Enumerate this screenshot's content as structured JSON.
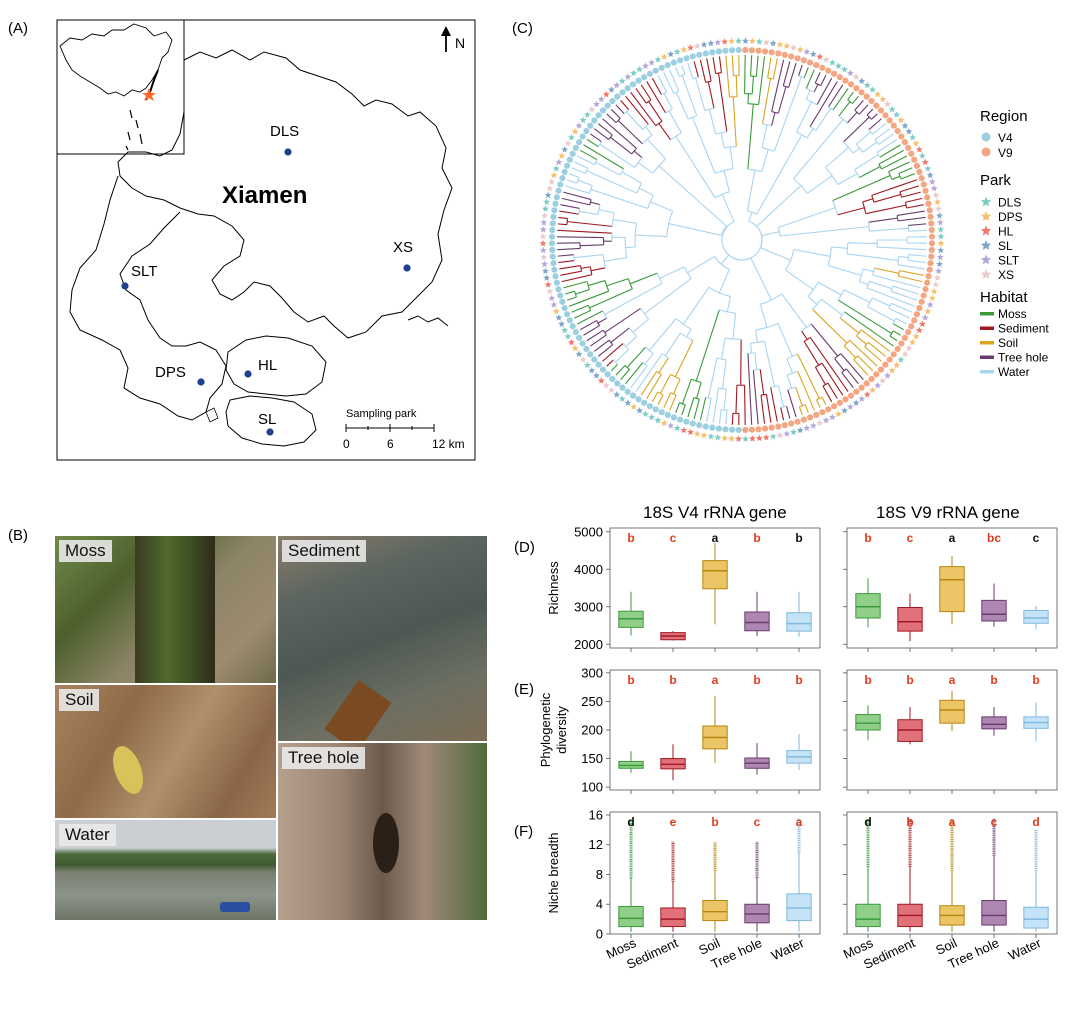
{
  "panels": {
    "a": "(A)",
    "b": "(B)",
    "c": "(C)",
    "d": "(D)",
    "e": "(E)",
    "f": "(F)"
  },
  "map": {
    "city": "Xiamen",
    "north": "N",
    "scalebar_title": "Sampling park",
    "scalebar_ticks": [
      "0",
      "6",
      "12 km"
    ],
    "sites": [
      {
        "name": "DLS"
      },
      {
        "name": "XS"
      },
      {
        "name": "SLT"
      },
      {
        "name": "DPS"
      },
      {
        "name": "HL"
      },
      {
        "name": "SL"
      }
    ],
    "site_color": "#1f3f8f",
    "star_color": "#ff6a2b"
  },
  "photos": {
    "moss": "Moss",
    "sediment": "Sediment",
    "soil": "Soil",
    "tree_hole": "Tree hole",
    "water": "Water"
  },
  "legend": {
    "region_title": "Region",
    "region": [
      {
        "label": "V4",
        "color": "#9ccfdf"
      },
      {
        "label": "V9",
        "color": "#f4a582"
      }
    ],
    "park_title": "Park",
    "park": [
      {
        "label": "DLS",
        "color": "#7ecdc6"
      },
      {
        "label": "DPS",
        "color": "#f7bf6e"
      },
      {
        "label": "HL",
        "color": "#ef7a6a"
      },
      {
        "label": "SL",
        "color": "#7fa5c8"
      },
      {
        "label": "SLT",
        "color": "#b6a8d9"
      },
      {
        "label": "XS",
        "color": "#eccaca"
      }
    ],
    "habitat_title": "Habitat",
    "habitat": [
      {
        "label": "Moss",
        "color": "#3a9a3a"
      },
      {
        "label": "Sediment",
        "color": "#a01820"
      },
      {
        "label": "Soil",
        "color": "#d9a520"
      },
      {
        "label": "Tree hole",
        "color": "#6a3a6e"
      },
      {
        "label": "Water",
        "color": "#a8d4f2"
      }
    ]
  },
  "chart_data": [
    {
      "type": "box",
      "panel": "D",
      "title": "18S V4 rRNA gene",
      "ylabel": "Richness",
      "ylim": [
        1900,
        5100
      ],
      "yticks": [
        2000,
        3000,
        4000,
        5000
      ],
      "categories": [
        "Moss",
        "Sediment",
        "Soil",
        "Tree hole",
        "Water"
      ],
      "letters": [
        "b",
        "c",
        "a",
        "b",
        "b"
      ],
      "letter_colors": [
        "#e03c1e",
        "#e03c1e",
        "#111111",
        "#e03c1e",
        "#111111"
      ],
      "boxes": [
        {
          "min": 2230,
          "q1": 2450,
          "median": 2680,
          "q3": 2880,
          "max": 3400
        },
        {
          "min": 2100,
          "q1": 2120,
          "median": 2220,
          "q3": 2310,
          "max": 2350
        },
        {
          "min": 2530,
          "q1": 3480,
          "median": 3960,
          "q3": 4230,
          "max": 4700
        },
        {
          "min": 2220,
          "q1": 2360,
          "median": 2580,
          "q3": 2860,
          "max": 3400
        },
        {
          "min": 2200,
          "q1": 2350,
          "median": 2550,
          "q3": 2840,
          "max": 3400
        }
      ]
    },
    {
      "type": "box",
      "panel": "D",
      "title": "18S V9 rRNA gene",
      "ylabel": "",
      "ylim": [
        1900,
        5100
      ],
      "yticks": [
        2000,
        3000,
        4000,
        5000
      ],
      "categories": [
        "Moss",
        "Sediment",
        "Soil",
        "Tree hole",
        "Water"
      ],
      "letters": [
        "b",
        "c",
        "a",
        "bc",
        "c"
      ],
      "letter_colors": [
        "#e03c1e",
        "#e03c1e",
        "#111111",
        "#e03c1e",
        "#111111"
      ],
      "boxes": [
        {
          "min": 2450,
          "q1": 2700,
          "median": 3000,
          "q3": 3350,
          "max": 3760
        },
        {
          "min": 2080,
          "q1": 2350,
          "median": 2600,
          "q3": 2980,
          "max": 3350
        },
        {
          "min": 2530,
          "q1": 2870,
          "median": 3720,
          "q3": 4070,
          "max": 4350
        },
        {
          "min": 2470,
          "q1": 2620,
          "median": 2800,
          "q3": 3170,
          "max": 3620
        },
        {
          "min": 2400,
          "q1": 2560,
          "median": 2700,
          "q3": 2900,
          "max": 3020
        }
      ]
    },
    {
      "type": "box",
      "panel": "E",
      "title": "",
      "ylabel": "Phylogenetic diversity",
      "ylim": [
        95,
        305
      ],
      "yticks": [
        100,
        150,
        200,
        250,
        300
      ],
      "categories": [
        "Moss",
        "Sediment",
        "Soil",
        "Tree hole",
        "Water"
      ],
      "letters": [
        "b",
        "b",
        "a",
        "b",
        "b"
      ],
      "letter_colors": [
        "#e03c1e",
        "#e03c1e",
        "#e03c1e",
        "#e03c1e",
        "#e03c1e"
      ],
      "boxes": [
        {
          "min": 125,
          "q1": 133,
          "median": 138,
          "q3": 145,
          "max": 163
        },
        {
          "min": 112,
          "q1": 132,
          "median": 140,
          "q3": 150,
          "max": 175
        },
        {
          "min": 142,
          "q1": 167,
          "median": 187,
          "q3": 207,
          "max": 260
        },
        {
          "min": 122,
          "q1": 133,
          "median": 142,
          "q3": 151,
          "max": 177
        },
        {
          "min": 130,
          "q1": 142,
          "median": 153,
          "q3": 164,
          "max": 193
        }
      ]
    },
    {
      "type": "box",
      "panel": "E",
      "title": "",
      "ylabel": "",
      "ylim": [
        95,
        305
      ],
      "yticks": [
        100,
        150,
        200,
        250,
        300
      ],
      "categories": [
        "Moss",
        "Sediment",
        "Soil",
        "Tree hole",
        "Water"
      ],
      "letters": [
        "b",
        "b",
        "a",
        "b",
        "b"
      ],
      "letter_colors": [
        "#e03c1e",
        "#e03c1e",
        "#e03c1e",
        "#e03c1e",
        "#e03c1e"
      ],
      "boxes": [
        {
          "min": 182,
          "q1": 200,
          "median": 212,
          "q3": 227,
          "max": 243
        },
        {
          "min": 175,
          "q1": 180,
          "median": 200,
          "q3": 218,
          "max": 240
        },
        {
          "min": 198,
          "q1": 212,
          "median": 235,
          "q3": 252,
          "max": 268
        },
        {
          "min": 190,
          "q1": 202,
          "median": 210,
          "q3": 223,
          "max": 240
        },
        {
          "min": 180,
          "q1": 203,
          "median": 213,
          "q3": 223,
          "max": 248
        }
      ]
    },
    {
      "type": "box",
      "panel": "F",
      "title": "",
      "ylabel": "Niche breadth",
      "ylim": [
        0,
        16.4
      ],
      "yticks": [
        0,
        4,
        8,
        12,
        16
      ],
      "categories": [
        "Moss",
        "Sediment",
        "Soil",
        "Tree hole",
        "Water"
      ],
      "letters": [
        "d",
        "e",
        "b",
        "c",
        "a"
      ],
      "letter_colors": [
        "#111111",
        "#e03c1e",
        "#e03c1e",
        "#e03c1e",
        "#e03c1e"
      ],
      "boxes": [
        {
          "min": 0.3,
          "q1": 1.0,
          "median": 2.1,
          "q3": 3.7,
          "max": 7.5,
          "outlier_top": 15.5
        },
        {
          "min": 0.3,
          "q1": 1.0,
          "median": 2.0,
          "q3": 3.5,
          "max": 7.0,
          "outlier_top": 12.4
        },
        {
          "min": 0.3,
          "q1": 1.8,
          "median": 3.0,
          "q3": 4.5,
          "max": 8.5,
          "outlier_top": 12.4
        },
        {
          "min": 0.3,
          "q1": 1.5,
          "median": 2.7,
          "q3": 4.0,
          "max": 7.5,
          "outlier_top": 12.4
        },
        {
          "min": 0.3,
          "q1": 1.8,
          "median": 3.5,
          "q3": 5.4,
          "max": 10.8,
          "outlier_top": 15.5
        }
      ]
    },
    {
      "type": "box",
      "panel": "F",
      "title": "",
      "ylabel": "",
      "ylim": [
        0,
        16.4
      ],
      "yticks": [
        0,
        4,
        8,
        12,
        16
      ],
      "categories": [
        "Moss",
        "Sediment",
        "Soil",
        "Tree hole",
        "Water"
      ],
      "letters": [
        "d",
        "b",
        "a",
        "c",
        "d"
      ],
      "letter_colors": [
        "#111111",
        "#e03c1e",
        "#e03c1e",
        "#e03c1e",
        "#e03c1e"
      ],
      "boxes": [
        {
          "min": 0.3,
          "q1": 1.0,
          "median": 2.0,
          "q3": 4.0,
          "max": 9.0,
          "outlier_top": 15.5
        },
        {
          "min": 0.3,
          "q1": 1.0,
          "median": 2.5,
          "q3": 4.0,
          "max": 9.0,
          "outlier_top": 15.5
        },
        {
          "min": 0.3,
          "q1": 1.2,
          "median": 2.5,
          "q3": 3.8,
          "max": 8.5,
          "outlier_top": 15.5
        },
        {
          "min": 0.3,
          "q1": 1.2,
          "median": 2.5,
          "q3": 4.5,
          "max": 10.5,
          "outlier_top": 15.5
        },
        {
          "min": 0.3,
          "q1": 0.8,
          "median": 2.0,
          "q3": 3.6,
          "max": 8.5,
          "outlier_top": 14.0
        }
      ]
    }
  ],
  "box_colors": [
    {
      "fill": "#8fcf88",
      "stroke": "#3a9a3a"
    },
    {
      "fill": "#e0707a",
      "stroke": "#a01820"
    },
    {
      "fill": "#ecc566",
      "stroke": "#b5850e"
    },
    {
      "fill": "#ad86b2",
      "stroke": "#6a3a6e"
    },
    {
      "fill": "#c5e3f7",
      "stroke": "#7fb7de"
    }
  ]
}
